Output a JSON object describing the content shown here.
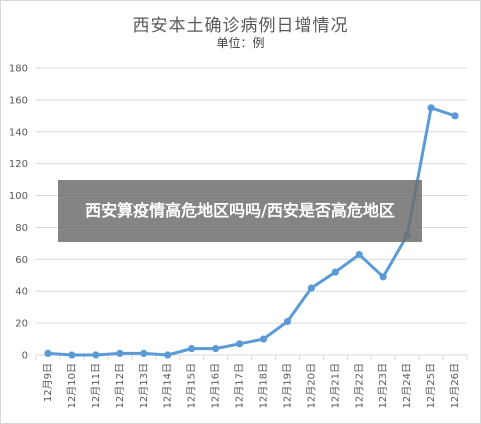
{
  "chart_data": {
    "type": "line",
    "title": "西安本土确诊病例日增情况",
    "subtitle": "单位：例",
    "categories": [
      "12月9日",
      "12月10日",
      "12月11日",
      "12月12日",
      "12月13日",
      "12月14日",
      "12月15日",
      "12月16日",
      "12月17日",
      "12月18日",
      "12月19日",
      "12月20日",
      "12月21日",
      "12月22日",
      "12月23日",
      "12月24日",
      "12月25日",
      "12月26日"
    ],
    "series": [
      {
        "values": [
          1,
          0,
          0,
          1,
          1,
          0,
          4,
          4,
          7,
          10,
          21,
          42,
          52,
          63,
          49,
          75,
          155,
          150
        ]
      }
    ],
    "ylim": [
      0,
      180
    ],
    "yticks": [
      0,
      20,
      40,
      60,
      80,
      100,
      120,
      140,
      160,
      180
    ],
    "grid": true,
    "line_color": "#5b9bd5"
  },
  "overlay": {
    "text": "西安算疫情高危地区吗吗/西安是否高危地区"
  }
}
